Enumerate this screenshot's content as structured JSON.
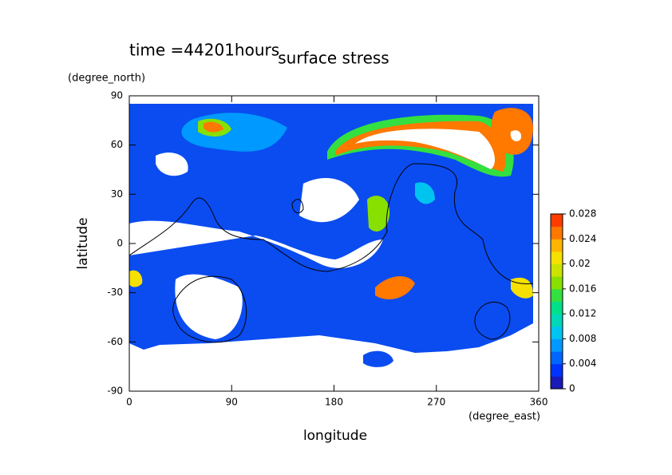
{
  "chart_data": {
    "type": "contour",
    "title": "surface stress",
    "subtitle": "time =44201hours",
    "y_unit": "(degree_north)",
    "x_unit": "(degree_east)",
    "xlabel": "longitude",
    "ylabel": "latitude",
    "xlim": [
      0,
      360
    ],
    "xticks": [
      0,
      90,
      180,
      270,
      360
    ],
    "ylim": [
      -90,
      90
    ],
    "yticks": [
      -90,
      -60,
      -30,
      0,
      30,
      60,
      90
    ],
    "colorbar": {
      "lim": [
        0,
        0.028
      ],
      "ticks": [
        0,
        0.004,
        0.008,
        0.012,
        0.016,
        0.02,
        0.024,
        0.028
      ],
      "colors": [
        "#1a1ab8",
        "#0033ff",
        "#0066ff",
        "#0099ff",
        "#00c4f0",
        "#00d8b8",
        "#00e088",
        "#33e040",
        "#88e000",
        "#c8e400",
        "#f5e000",
        "#ffb400",
        "#ff7800",
        "#ff3c00"
      ]
    }
  }
}
